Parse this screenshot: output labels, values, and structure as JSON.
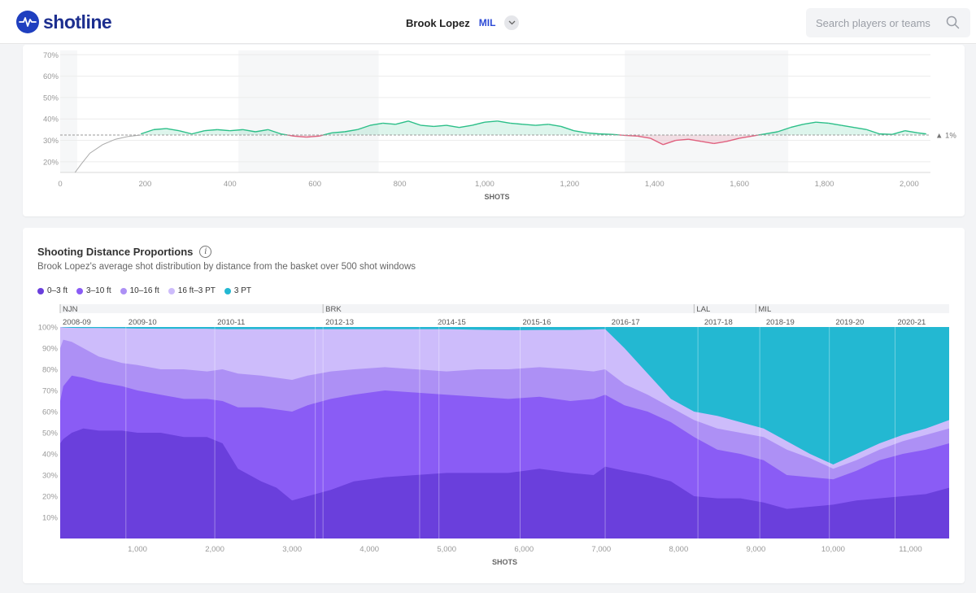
{
  "header": {
    "logo_text": "shotline",
    "player_name": "Brook Lopez",
    "team": "MIL",
    "search_placeholder": "Search players or teams"
  },
  "colors": {
    "brand": "#1f3fbf",
    "accent_team": "#2d4bd6",
    "above_avg": "#2bbf88",
    "below_avg": "#e0607e",
    "band_0_3": "#6a3fdc",
    "band_3_10": "#8a5cf5",
    "band_10_16": "#ad90f5",
    "band_16_3": "#cdbcfb",
    "band_3pt": "#23b8d2"
  },
  "top_chart": {
    "average_marker": "▲ 1%",
    "chart_data": {
      "type": "line",
      "xlabel": "SHOTS",
      "ylabel": "",
      "xlim": [
        0,
        2050
      ],
      "ylim": [
        15,
        72
      ],
      "x_ticks": [
        0,
        200,
        400,
        600,
        800,
        1000,
        1200,
        1400,
        1600,
        1800,
        2000
      ],
      "x_tick_labels": [
        "0",
        "200",
        "400",
        "600",
        "800",
        "1,000",
        "1,200",
        "1,400",
        "1,600",
        "1,800",
        "2,000"
      ],
      "y_ticks": [
        20,
        30,
        40,
        50,
        60,
        70
      ],
      "y_tick_labels": [
        "20%",
        "30%",
        "40%",
        "50%",
        "60%",
        "70%"
      ],
      "baseline": 32.5,
      "season_band_edges": [
        0,
        40,
        420,
        750,
        1330,
        1715,
        2030
      ],
      "warmup": {
        "x": [
          35,
          50,
          70,
          100,
          130,
          160,
          190
        ],
        "y": [
          15,
          19,
          24,
          28,
          30.5,
          31.8,
          32.5
        ]
      },
      "series": [
        {
          "name": "FG%",
          "x": [
            190,
            220,
            250,
            280,
            310,
            340,
            370,
            400,
            430,
            460,
            490,
            520,
            550,
            580,
            610,
            640,
            670,
            700,
            730,
            760,
            790,
            820,
            850,
            880,
            910,
            940,
            970,
            1000,
            1030,
            1060,
            1090,
            1120,
            1150,
            1180,
            1210,
            1240,
            1270,
            1300,
            1330,
            1360,
            1390,
            1420,
            1450,
            1480,
            1510,
            1540,
            1570,
            1600,
            1630,
            1660,
            1690,
            1720,
            1750,
            1780,
            1810,
            1840,
            1870,
            1900,
            1930,
            1960,
            1990,
            2020,
            2040
          ],
          "y": [
            33,
            35,
            35.5,
            34.5,
            33,
            34.5,
            35,
            34.5,
            35,
            34,
            35,
            33,
            32,
            31.5,
            32,
            33.5,
            34,
            35,
            37,
            38,
            37.5,
            39,
            37,
            36.5,
            37,
            36,
            37,
            38.5,
            39,
            38,
            37.5,
            37,
            37.5,
            36.5,
            34.5,
            33.5,
            33,
            32.8,
            32.3,
            32,
            31,
            28,
            30,
            30.5,
            29.5,
            28.5,
            29.5,
            31,
            32,
            33,
            34,
            36,
            37.5,
            38.5,
            38,
            37,
            36,
            35,
            33,
            32.8,
            34.5,
            33.5,
            33
          ]
        }
      ]
    }
  },
  "distance_chart": {
    "title": "Shooting Distance Proportions",
    "subtitle": "Brook Lopez's average shot distribution by distance from the basket over 500 shot windows",
    "chart_data": {
      "type": "area",
      "title": "Shooting Distance Proportions",
      "xlabel": "SHOTS",
      "ylabel": "",
      "xlim": [
        0,
        11500
      ],
      "ylim": [
        0,
        100
      ],
      "x_ticks": [
        1000,
        2000,
        3000,
        4000,
        5000,
        6000,
        7000,
        8000,
        9000,
        10000,
        11000
      ],
      "x_tick_labels": [
        "1,000",
        "2,000",
        "3,000",
        "4,000",
        "5,000",
        "6,000",
        "7,000",
        "8,000",
        "9,000",
        "10,000",
        "11,000"
      ],
      "y_ticks": [
        10,
        20,
        30,
        40,
        50,
        60,
        70,
        80,
        90,
        100
      ],
      "y_tick_labels": [
        "10%",
        "20%",
        "30%",
        "40%",
        "50%",
        "60%",
        "70%",
        "80%",
        "90%",
        "100%"
      ],
      "legend": [
        "0–3 ft",
        "3–10 ft",
        "10–16 ft",
        "16 ft–3 PT",
        "3 PT"
      ],
      "teams": [
        {
          "label": "NJN",
          "x": 0
        },
        {
          "label": "BRK",
          "x": 3400
        },
        {
          "label": "LAL",
          "x": 8200
        },
        {
          "label": "MIL",
          "x": 9000
        }
      ],
      "seasons": [
        {
          "label": "2008-09",
          "x": 0
        },
        {
          "label": "2009-10",
          "x": 850
        },
        {
          "label": "2010-11",
          "x": 2000
        },
        {
          "label": "2012-13",
          "x": 3400
        },
        {
          "label": "2014-15",
          "x": 4850
        },
        {
          "label": "2015-16",
          "x": 5950
        },
        {
          "label": "2016-17",
          "x": 7100
        },
        {
          "label": "2017-18",
          "x": 8300
        },
        {
          "label": "2018-19",
          "x": 9100
        },
        {
          "label": "2019-20",
          "x": 10000
        },
        {
          "label": "2020-21",
          "x": 10800
        }
      ],
      "season_lines": [
        850,
        2000,
        3300,
        3400,
        4650,
        4900,
        5950,
        7050,
        8250,
        9050,
        9950,
        10800
      ],
      "x": [
        0,
        40,
        150,
        300,
        500,
        800,
        1000,
        1300,
        1600,
        1900,
        2100,
        2300,
        2600,
        2800,
        3000,
        3200,
        3500,
        3800,
        4200,
        4600,
        5000,
        5400,
        5800,
        6200,
        6600,
        6900,
        7050,
        7300,
        7600,
        7900,
        8200,
        8500,
        8800,
        9100,
        9400,
        9700,
        10000,
        10300,
        10600,
        10900,
        11200,
        11500
      ],
      "series": [
        {
          "name": "0–3 ft",
          "cum": [
            45,
            47,
            50,
            52,
            51,
            51,
            50,
            50,
            48,
            48,
            45,
            33,
            27,
            24,
            18,
            20,
            23,
            27,
            29,
            30,
            31,
            31,
            31,
            33,
            31,
            30,
            34,
            32,
            30,
            27,
            20,
            19,
            19,
            17,
            14,
            15,
            16,
            18,
            19,
            20,
            21,
            24
          ]
        },
        {
          "name": "3–10 ft",
          "cum": [
            65,
            72,
            77,
            76,
            74,
            72,
            70,
            68,
            66,
            66,
            65,
            62,
            62,
            61,
            60,
            63,
            66,
            68,
            70,
            69,
            68,
            67,
            66,
            67,
            65,
            66,
            68,
            63,
            60,
            55,
            48,
            42,
            40,
            37,
            30,
            29,
            28,
            32,
            37,
            40,
            42,
            45
          ]
        },
        {
          "name": "10–16 ft",
          "cum": [
            90,
            94,
            93,
            90,
            86,
            83,
            82,
            80,
            80,
            79,
            80,
            78,
            77,
            76,
            75,
            77,
            79,
            80,
            81,
            80,
            79,
            80,
            80,
            81,
            80,
            79,
            80,
            73,
            68,
            62,
            56,
            52,
            50,
            48,
            42,
            38,
            33,
            37,
            42,
            46,
            49,
            52
          ]
        },
        {
          "name": "16 ft–3 PT",
          "cum": [
            100,
            99.8,
            99.6,
            99.5,
            99.5,
            99.4,
            99.3,
            99.2,
            99.2,
            99.2,
            99,
            99,
            99,
            99,
            99,
            99,
            99,
            99,
            99,
            99,
            99,
            98.7,
            98.5,
            98.6,
            98.6,
            98.8,
            99,
            90,
            78,
            66,
            60,
            58,
            55,
            52,
            46,
            40,
            35,
            40,
            45,
            49,
            52,
            56
          ]
        },
        {
          "name": "3 PT",
          "cum": [
            100,
            100,
            100,
            100,
            100,
            100,
            100,
            100,
            100,
            100,
            100,
            100,
            100,
            100,
            100,
            100,
            100,
            100,
            100,
            100,
            100,
            100,
            100,
            100,
            100,
            100,
            100,
            100,
            100,
            100,
            100,
            100,
            100,
            100,
            100,
            100,
            100,
            100,
            100,
            100,
            100,
            100
          ]
        }
      ]
    }
  }
}
